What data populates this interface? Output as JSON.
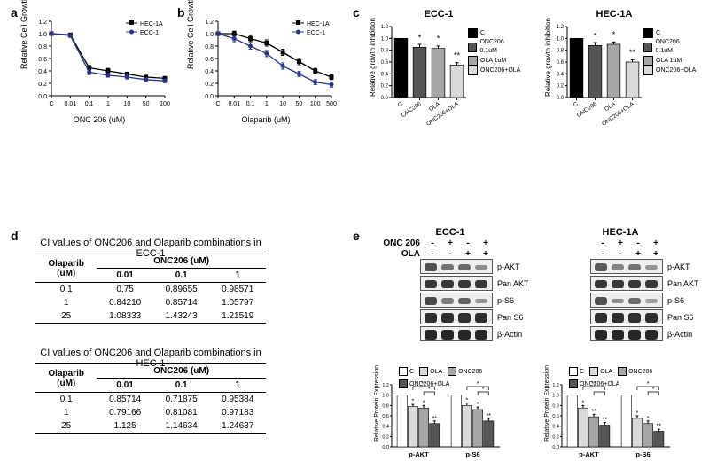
{
  "palette": {
    "black": "#000000",
    "dark_blue": "#27348b",
    "bar_colors": [
      "#000000",
      "#555555",
      "#a6a6a6",
      "#d9d9d9"
    ],
    "grid": "#000000",
    "bg": "#ffffff",
    "band_bg": "#efeeee",
    "band_border": "#555555"
  },
  "panel_a": {
    "label": "a",
    "ylabel": "Relative Cell Growth Inhibition",
    "xlabel": "ONC 206 (uM)",
    "xticks": [
      "C",
      "0.01",
      "0.1",
      "1",
      "10",
      "50",
      "100"
    ],
    "ylim": [
      0,
      1.2
    ],
    "ytick_step": 0.2,
    "series": [
      {
        "name": "HEC-1A",
        "marker": "square",
        "color": "#000000",
        "y": [
          1.0,
          0.98,
          0.45,
          0.4,
          0.35,
          0.3,
          0.28
        ],
        "err": [
          0.02,
          0.03,
          0.04,
          0.04,
          0.03,
          0.03,
          0.03
        ]
      },
      {
        "name": "ECC-1",
        "marker": "circle",
        "color": "#27348b",
        "y": [
          1.0,
          0.97,
          0.38,
          0.33,
          0.3,
          0.26,
          0.24
        ],
        "err": [
          0.02,
          0.03,
          0.04,
          0.03,
          0.03,
          0.03,
          0.03
        ]
      }
    ],
    "legend_pos": "top-right"
  },
  "panel_b": {
    "label": "b",
    "ylabel": "Relative Cell Growth Inhibition",
    "xlabel": "Olaparib (uM)",
    "xticks": [
      "C",
      "0.01",
      "0.1",
      "1",
      "10",
      "50",
      "100",
      "500"
    ],
    "ylim": [
      0,
      1.2
    ],
    "ytick_step": 0.2,
    "series": [
      {
        "name": "HEC-1A",
        "marker": "square",
        "color": "#000000",
        "y": [
          1.0,
          1.0,
          0.92,
          0.85,
          0.7,
          0.55,
          0.4,
          0.3
        ],
        "err": [
          0.02,
          0.04,
          0.05,
          0.05,
          0.05,
          0.05,
          0.04,
          0.04
        ]
      },
      {
        "name": "ECC-1",
        "marker": "circle",
        "color": "#27348b",
        "y": [
          1.0,
          0.92,
          0.8,
          0.68,
          0.48,
          0.35,
          0.22,
          0.18
        ],
        "err": [
          0.02,
          0.05,
          0.05,
          0.05,
          0.05,
          0.04,
          0.04,
          0.04
        ]
      }
    ],
    "legend_pos": "top-right"
  },
  "panel_c": {
    "label": "c",
    "charts": [
      {
        "title": "ECC-1",
        "ylabel": "Relative growth inhibition",
        "ylim": [
          0,
          1.2
        ],
        "ytick_step": 0.2,
        "categories": [
          "C",
          "ONC206",
          "OLA",
          "ONC206+OLA"
        ],
        "legend": [
          "C",
          "ONC206 0.1uM",
          "OLA 1uM",
          "ONC206+OLA"
        ],
        "values": [
          1.0,
          0.85,
          0.83,
          0.55
        ],
        "err": [
          0,
          0.05,
          0.04,
          0.04
        ],
        "sig": [
          "",
          "*",
          "*",
          "**"
        ]
      },
      {
        "title": "HEC-1A",
        "ylabel": "Relative growth inhibition",
        "ylim": [
          0,
          1.2
        ],
        "ytick_step": 0.2,
        "categories": [
          "C",
          "ONC206",
          "OLA",
          "ONC206+OLA"
        ],
        "legend": [
          "C",
          "ONC206 0.1uM",
          "OLA 1uM",
          "ONC206+OLA"
        ],
        "values": [
          1.0,
          0.88,
          0.9,
          0.6
        ],
        "err": [
          0,
          0.05,
          0.04,
          0.04
        ],
        "sig": [
          "",
          "*",
          "*",
          "**"
        ]
      }
    ]
  },
  "panel_d": {
    "label": "d",
    "tables": [
      {
        "caption": "CI values of ONC206 and Olaparib combinations in ECC-1",
        "col_header": "ONC206 (uM)",
        "row_header": "Olaparib (uM)",
        "columns": [
          "0.01",
          "0.1",
          "1"
        ],
        "rows": [
          {
            "label": "0.1",
            "cells": [
              "0.75",
              "0.89655",
              "0.98571"
            ]
          },
          {
            "label": "1",
            "cells": [
              "0.84210",
              "0.85714",
              "1.05797"
            ]
          },
          {
            "label": "25",
            "cells": [
              "1.08333",
              "1.43243",
              "1.21519"
            ]
          }
        ]
      },
      {
        "caption": "CI values of ONC206 and Olaparib combinations in HEC-1",
        "col_header": "ONC206 (uM)",
        "row_header": "Olaparib (uM)",
        "columns": [
          "0.01",
          "0.1",
          "1"
        ],
        "rows": [
          {
            "label": "0.1",
            "cells": [
              "0.85714",
              "0.71875",
              "0.95384"
            ]
          },
          {
            "label": "1",
            "cells": [
              "0.79166",
              "0.81081",
              "0.97183"
            ]
          },
          {
            "label": "25",
            "cells": [
              "1.125",
              "1.14634",
              "1.24637"
            ]
          }
        ]
      }
    ]
  },
  "panel_e": {
    "label": "e",
    "cells": [
      "ECC-1",
      "HEC-1A"
    ],
    "treat_rows": [
      {
        "label": "ONC 206",
        "pattern": [
          "-",
          "+",
          "-",
          "+"
        ]
      },
      {
        "label": "OLA",
        "pattern": [
          "-",
          "-",
          "+",
          "+"
        ]
      }
    ],
    "bands": [
      "p-AKT",
      "Pan AKT",
      "p-S6",
      "Pan S6",
      "β-Actin"
    ],
    "band_intensity": {
      "ECC-1": {
        "p-AKT": [
          0.7,
          0.5,
          0.55,
          0.35
        ],
        "Pan AKT": [
          0.85,
          0.85,
          0.85,
          0.85
        ],
        "p-S6": [
          0.75,
          0.45,
          0.6,
          0.3
        ],
        "Pan S6": [
          0.9,
          0.9,
          0.9,
          0.9
        ],
        "β-Actin": [
          0.95,
          0.95,
          0.95,
          0.95
        ]
      },
      "HEC-1A": {
        "p-AKT": [
          0.65,
          0.4,
          0.5,
          0.3
        ],
        "Pan AKT": [
          0.85,
          0.85,
          0.85,
          0.85
        ],
        "p-S6": [
          0.7,
          0.35,
          0.55,
          0.25
        ],
        "Pan S6": [
          0.9,
          0.9,
          0.9,
          0.9
        ],
        "β-Actin": [
          0.95,
          0.95,
          0.95,
          0.95
        ]
      }
    },
    "quant_charts": [
      {
        "ylabel": "Relative Protein Expression",
        "ylim": [
          0,
          1.2
        ],
        "ytick_step": 0.2,
        "groups": [
          "p-AKT",
          "p-S6"
        ],
        "legend": [
          "C",
          "OLA",
          "ONC206",
          "ONC206+OLA"
        ],
        "series_colors": [
          "#ffffff",
          "#d9d9d9",
          "#a6a6a6",
          "#555555"
        ],
        "data": {
          "p-AKT": {
            "values": [
              1.0,
              0.78,
              0.75,
              0.45
            ],
            "err": [
              0,
              0.04,
              0.05,
              0.05
            ],
            "sig": [
              "",
              "*",
              "*",
              "**"
            ],
            "brackets": [
              {
                "i": 1,
                "j": 3,
                "label": "**"
              },
              {
                "i": 2,
                "j": 3,
                "label": "*"
              }
            ]
          },
          "p-S6": {
            "values": [
              1.0,
              0.8,
              0.72,
              0.5
            ],
            "err": [
              0,
              0.05,
              0.05,
              0.05
            ],
            "sig": [
              "",
              "*",
              "*",
              "**"
            ],
            "brackets": [
              {
                "i": 1,
                "j": 3,
                "label": "*"
              },
              {
                "i": 2,
                "j": 3,
                "label": "*"
              }
            ]
          }
        }
      },
      {
        "ylabel": "Relative Protein Expression",
        "ylim": [
          0,
          1.2
        ],
        "ytick_step": 0.2,
        "groups": [
          "p-AKT",
          "p-S6"
        ],
        "legend": [
          "C",
          "OLA",
          "ONC206",
          "ONC206+OLA"
        ],
        "series_colors": [
          "#ffffff",
          "#d9d9d9",
          "#a6a6a6",
          "#555555"
        ],
        "data": {
          "p-AKT": {
            "values": [
              1.0,
              0.75,
              0.58,
              0.42
            ],
            "err": [
              0,
              0.05,
              0.05,
              0.05
            ],
            "sig": [
              "",
              "*",
              "**",
              "**"
            ],
            "brackets": [
              {
                "i": 1,
                "j": 3,
                "label": "**"
              },
              {
                "i": 2,
                "j": 3,
                "label": ""
              }
            ]
          },
          "p-S6": {
            "values": [
              1.0,
              0.55,
              0.45,
              0.3
            ],
            "err": [
              0,
              0.05,
              0.05,
              0.04
            ],
            "sig": [
              "",
              "*",
              "*",
              "**"
            ],
            "brackets": [
              {
                "i": 1,
                "j": 3,
                "label": "*"
              },
              {
                "i": 2,
                "j": 3,
                "label": "*"
              }
            ]
          }
        }
      }
    ]
  }
}
